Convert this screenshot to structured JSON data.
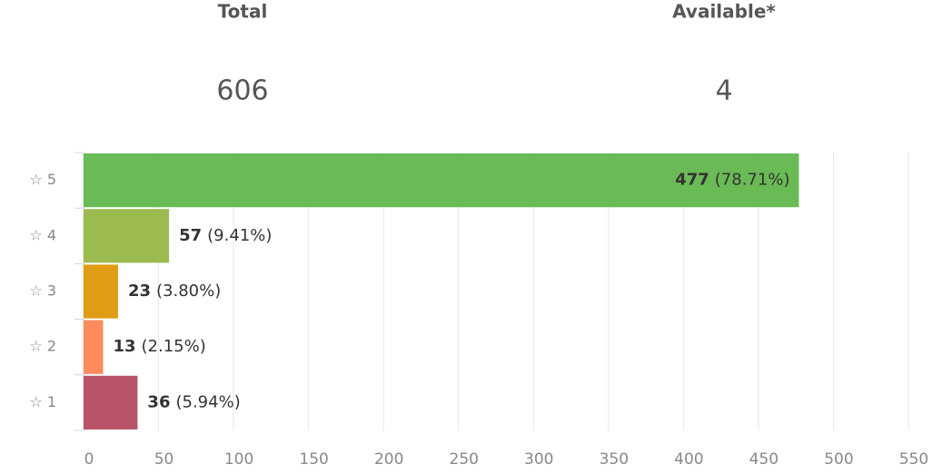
{
  "header": {
    "stats": [
      {
        "label": "Total",
        "value": 606
      },
      {
        "label": "Available*",
        "value": 4
      }
    ]
  },
  "chart_data": {
    "type": "bar",
    "orientation": "horizontal",
    "categories": [
      "☆ 5",
      "☆ 4",
      "☆ 3",
      "☆ 2",
      "☆ 1"
    ],
    "values": [
      477,
      57,
      23,
      13,
      36
    ],
    "percent_labels": [
      "(78.71%)",
      "(9.41%)",
      "(3.80%)",
      "(2.15%)",
      "(5.94%)"
    ],
    "colors": [
      "#6aba55",
      "#9bbb50",
      "#e09c14",
      "#ff8a5c",
      "#b85467"
    ],
    "xlim": [
      0,
      550
    ],
    "xticks": [
      0,
      50,
      100,
      150,
      200,
      250,
      300,
      350,
      400,
      450,
      500,
      550
    ],
    "grid": true
  }
}
